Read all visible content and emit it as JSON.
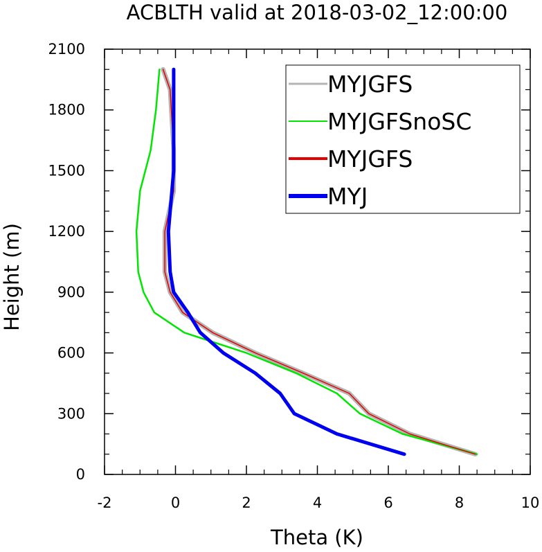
{
  "chart_data": {
    "type": "line",
    "title": "ACBLTH valid at 2018-03-02_12:00:00",
    "xlabel": "Theta (K)",
    "ylabel": "Height (m)",
    "xlim": [
      -2,
      10
    ],
    "ylim": [
      0,
      2100
    ],
    "xticks": [
      "-2",
      "0",
      "2",
      "4",
      "6",
      "8",
      "10"
    ],
    "yticks": [
      "0",
      "300",
      "600",
      "900",
      "1200",
      "1500",
      "1800",
      "2100"
    ],
    "legend_position": "top-right",
    "series": [
      {
        "name": "MYJGFS",
        "color": "#b4b4b4",
        "x": [
          8.45,
          6.6,
          5.45,
          4.9,
          3.6,
          2.25,
          1.05,
          0.2,
          -0.15,
          -0.3,
          -0.3,
          -0.05,
          -0.05,
          -0.15,
          -0.35
        ],
        "y": [
          100,
          200,
          300,
          400,
          500,
          600,
          700,
          800,
          900,
          1000,
          1200,
          1400,
          1600,
          1900,
          2000
        ]
      },
      {
        "name": "MYJGFSnoSC",
        "color": "#00e600",
        "x": [
          8.5,
          6.4,
          5.2,
          4.55,
          3.4,
          2.0,
          0.25,
          -0.6,
          -0.9,
          -1.05,
          -1.1,
          -1.0,
          -0.7,
          -0.55,
          -0.45
        ],
        "y": [
          100,
          200,
          300,
          400,
          500,
          600,
          700,
          800,
          900,
          1000,
          1200,
          1400,
          1600,
          1800,
          2000
        ]
      },
      {
        "name": "MYJGFS",
        "color": "#e60000",
        "x": [
          8.45,
          6.6,
          5.45,
          4.9,
          3.6,
          2.25,
          1.05,
          0.2,
          -0.15,
          -0.3,
          -0.3,
          -0.05,
          -0.05,
          -0.15,
          -0.35
        ],
        "y": [
          100,
          200,
          300,
          400,
          500,
          600,
          700,
          800,
          900,
          1000,
          1200,
          1400,
          1600,
          1900,
          2000
        ]
      },
      {
        "name": "MYJ",
        "color": "#0000f0",
        "x": [
          6.45,
          4.55,
          3.35,
          2.95,
          2.25,
          1.35,
          0.7,
          0.35,
          -0.05,
          -0.15,
          -0.2,
          -0.05,
          -0.05,
          -0.05
        ],
        "y": [
          100,
          200,
          300,
          400,
          500,
          600,
          700,
          800,
          900,
          1000,
          1200,
          1500,
          1800,
          2000
        ]
      }
    ]
  }
}
